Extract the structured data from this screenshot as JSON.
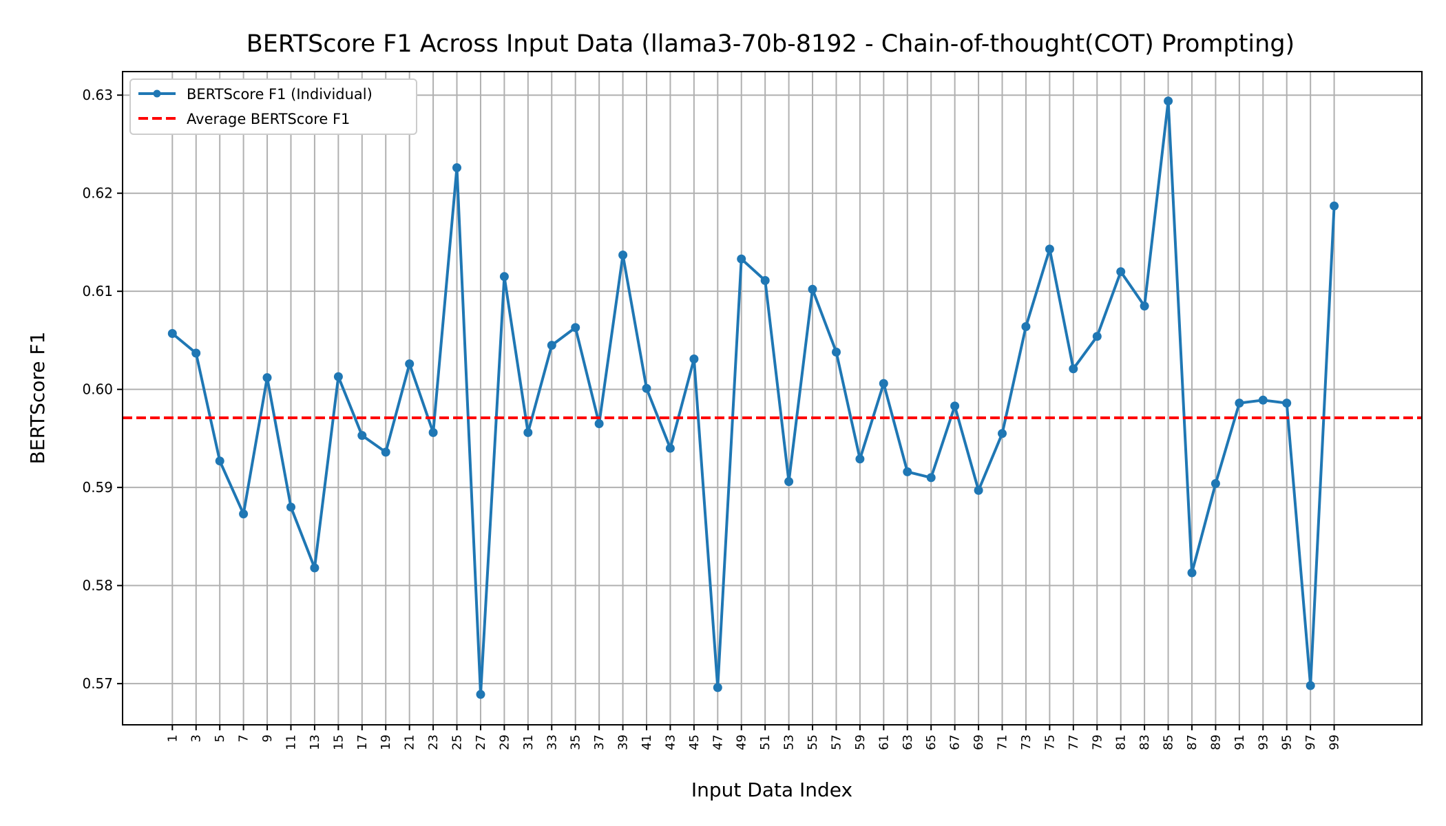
{
  "chart_data": {
    "type": "line",
    "title": "BERTScore F1 Across Input Data (llama3-70b-8192 - Chain-of-thought(COT) Prompting)",
    "xlabel": "Input Data Index",
    "ylabel": "BERTScore F1",
    "ylim": [
      0.5658,
      0.6324
    ],
    "xlim": [
      -3.2,
      106.4
    ],
    "y_ticks": [
      0.57,
      0.58,
      0.59,
      0.6,
      0.61,
      0.62,
      0.63
    ],
    "y_tick_labels": [
      "0.57",
      "0.58",
      "0.59",
      "0.60",
      "0.61",
      "0.62",
      "0.63"
    ],
    "x_ticks": [
      1,
      3,
      5,
      7,
      9,
      11,
      13,
      15,
      17,
      19,
      21,
      23,
      25,
      27,
      29,
      31,
      33,
      35,
      37,
      39,
      41,
      43,
      45,
      47,
      49,
      51,
      53,
      55,
      57,
      59,
      61,
      63,
      65,
      67,
      69,
      71,
      73,
      75,
      77,
      79,
      81,
      83,
      85,
      87,
      89,
      91,
      93,
      95,
      97,
      99
    ],
    "x_tick_labels": [
      "1",
      "3",
      "5",
      "7",
      "9",
      "11",
      "13",
      "15",
      "17",
      "19",
      "21",
      "23",
      "25",
      "27",
      "29",
      "31",
      "33",
      "35",
      "37",
      "39",
      "41",
      "43",
      "45",
      "47",
      "49",
      "51",
      "53",
      "55",
      "57",
      "59",
      "61",
      "63",
      "65",
      "67",
      "69",
      "71",
      "73",
      "75",
      "77",
      "79",
      "81",
      "83",
      "85",
      "87",
      "89",
      "91",
      "93",
      "95",
      "97",
      "99"
    ],
    "grid": true,
    "legend_position": "top-left",
    "series": [
      {
        "name": "BERTScore F1 (Individual)",
        "style": "line-marker",
        "color": "#1f77b4",
        "x": [
          1,
          3,
          5,
          7,
          9,
          11,
          13,
          15,
          17,
          19,
          21,
          23,
          25,
          27,
          29,
          31,
          33,
          35,
          37,
          39,
          41,
          43,
          45,
          47,
          49,
          51,
          53,
          55,
          57,
          59,
          61,
          63,
          65,
          67,
          69,
          71,
          73,
          75,
          77,
          79,
          81,
          83,
          85,
          87,
          89,
          91,
          93,
          95,
          97,
          99
        ],
        "values": [
          0.6057,
          0.6037,
          0.5927,
          0.5873,
          0.6012,
          0.588,
          0.5818,
          0.6013,
          0.5953,
          0.5936,
          0.6026,
          0.5956,
          0.6226,
          0.5689,
          0.6115,
          0.5956,
          0.6045,
          0.6063,
          0.5965,
          0.6137,
          0.6001,
          0.594,
          0.6031,
          0.5696,
          0.6133,
          0.6111,
          0.5906,
          0.6102,
          0.6038,
          0.5929,
          0.6006,
          0.5916,
          0.591,
          0.5983,
          0.5897,
          0.5955,
          0.6064,
          0.6143,
          0.6021,
          0.6054,
          0.612,
          0.6085,
          0.6294,
          0.5813,
          0.5904,
          0.5986,
          0.5989,
          0.5986,
          0.5698,
          0.6187
        ]
      },
      {
        "name": "Average BERTScore F1",
        "style": "dashed",
        "color": "#ff0000",
        "value": 0.5971
      }
    ]
  }
}
